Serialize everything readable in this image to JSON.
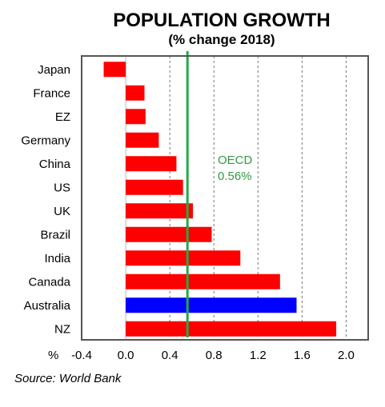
{
  "chart_data": {
    "type": "bar",
    "orientation": "horizontal",
    "title": "POPULATION GROWTH",
    "subtitle": "(% change 2018)",
    "categories": [
      "Japan",
      "France",
      "EZ",
      "Germany",
      "China",
      "US",
      "UK",
      "Brazil",
      "India",
      "Canada",
      "Australia",
      "NZ"
    ],
    "values": [
      -0.2,
      0.17,
      0.18,
      0.3,
      0.46,
      0.52,
      0.61,
      0.78,
      1.04,
      1.4,
      1.55,
      1.91
    ],
    "bar_colors": [
      "#ff0000",
      "#ff0000",
      "#ff0000",
      "#ff0000",
      "#ff0000",
      "#ff0000",
      "#ff0000",
      "#ff0000",
      "#ff0000",
      "#ff0000",
      "#0000ff",
      "#ff0000"
    ],
    "xlim": [
      -0.4,
      2.2
    ],
    "xticks": [
      "-0.4",
      "0.0",
      "0.4",
      "0.8",
      "1.2",
      "1.6",
      "2.0"
    ],
    "xtick_values": [
      -0.4,
      0.0,
      0.4,
      0.8,
      1.2,
      1.6,
      2.0
    ],
    "x_unit": "%",
    "grid": "vertical dashed",
    "reference_line": {
      "value": 0.56,
      "color": "#22aa44",
      "label_line1": "OECD",
      "label_line2": "0.56%"
    },
    "source": "Source: World Bank"
  }
}
